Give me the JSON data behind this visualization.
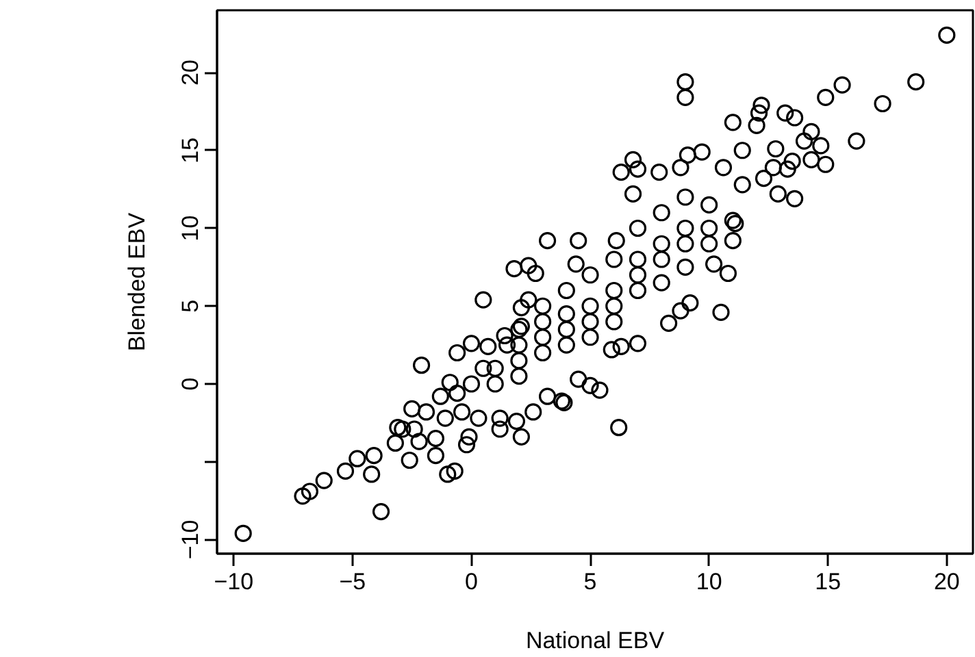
{
  "chart_data": {
    "type": "scatter",
    "xlabel": "National EBV",
    "ylabel": "Blended EBV",
    "xlim": [
      -10.7,
      21.1
    ],
    "ylim": [
      -10.9,
      24.0
    ],
    "xticks": [
      -10,
      -5,
      0,
      5,
      10,
      15,
      20
    ],
    "yticks": [
      -10,
      {
        "value": -5,
        "label": null
      },
      0,
      5,
      10,
      15,
      20
    ],
    "grid": false,
    "marker": "circle",
    "series": [
      {
        "color": "#000000",
        "x": [
          -9.6,
          -7.1,
          -6.8,
          -6.2,
          -5.3,
          -4.8,
          -4.1,
          -4.2,
          -3.8,
          -3.1,
          -3.2,
          -2.6,
          -2.5,
          -2.1,
          -2.2,
          -1.5,
          -1.0,
          -0.7,
          -0.2,
          -0.1,
          -0.6,
          0.0,
          0.5,
          1.2,
          2.1,
          1.8,
          2.4,
          2.7,
          3.2,
          3.8,
          5.4,
          6.2,
          6.8,
          6.3,
          7.0,
          9.0,
          9.0,
          9.2,
          10.5,
          10.8,
          11.0,
          11.4,
          12.2,
          12.1,
          12.0,
          13.2,
          13.6,
          14.3,
          14.7,
          14.9,
          14.3,
          13.6,
          12.9,
          14.9,
          15.6,
          16.2,
          17.3,
          18.7,
          20.0,
          12.3,
          12.7,
          13.3,
          13.5,
          12.8,
          14.0,
          11.4,
          10.6,
          11.1,
          11.0,
          10.2,
          9.7,
          9.1,
          8.8,
          7.9,
          6.8,
          6.1,
          4.5,
          4.4,
          8.3,
          8.8,
          7.0,
          6.3,
          5.9,
          5.0,
          4.5,
          3.9,
          3.2,
          2.6,
          1.9,
          1.2,
          0.3,
          -0.6,
          -0.9,
          -1.3,
          -1.9,
          -2.4,
          -2.9,
          -1.5,
          -1.1,
          -0.4,
          2.4,
          2.1,
          2.1,
          1.4,
          0.7,
          1,
          2,
          2,
          3,
          3,
          4,
          4,
          5,
          5,
          6,
          6,
          7,
          7,
          8,
          8,
          9,
          9,
          10,
          10,
          3,
          4,
          5,
          6,
          7,
          8,
          9,
          2,
          3,
          4,
          5,
          6,
          7,
          8,
          9,
          10,
          11,
          1,
          0.5,
          1.5,
          0,
          2
        ],
        "values": [
          -9.6,
          -7.2,
          -6.9,
          -6.2,
          -5.6,
          -4.8,
          -4.6,
          -5.8,
          -8.2,
          -2.8,
          -3.8,
          -4.9,
          -1.6,
          1.2,
          -3.7,
          -4.6,
          -5.8,
          -5.6,
          -3.9,
          -3.4,
          2.0,
          2.6,
          5.4,
          -2.9,
          -3.4,
          7.4,
          7.6,
          7.1,
          9.2,
          -1.1,
          -0.4,
          -2.8,
          14.4,
          13.6,
          13.8,
          19.4,
          18.4,
          5.2,
          4.6,
          7.1,
          16.8,
          15.0,
          17.9,
          17.4,
          16.6,
          17.4,
          17.1,
          16.2,
          15.3,
          14.1,
          14.4,
          11.9,
          12.2,
          18.4,
          19.2,
          15.6,
          18.0,
          19.4,
          22.4,
          13.2,
          13.9,
          13.8,
          14.3,
          15.1,
          15.6,
          12.8,
          13.9,
          10.3,
          9.2,
          7.7,
          14.9,
          14.7,
          13.9,
          13.6,
          12.2,
          9.2,
          9.2,
          7.7,
          3.9,
          4.7,
          2.6,
          2.4,
          2.2,
          -0.1,
          0.3,
          -1.2,
          -0.8,
          -1.8,
          -2.4,
          -2.2,
          -2.2,
          -0.6,
          0.1,
          -0.8,
          -1.8,
          -2.9,
          -2.9,
          -3.5,
          -2.2,
          -1.8,
          5.4,
          3.7,
          4.9,
          3.1,
          2.4,
          1,
          1.5,
          2.5,
          3,
          4,
          3.5,
          4.5,
          5,
          4,
          6,
          5,
          7,
          8,
          8,
          9,
          9,
          10,
          10,
          9,
          2,
          2.5,
          3,
          4,
          6,
          6.5,
          7.5,
          3.5,
          5,
          6,
          7,
          8,
          10,
          11,
          12,
          11.5,
          10.5,
          0,
          1,
          2.5,
          0,
          0.5
        ]
      }
    ]
  }
}
